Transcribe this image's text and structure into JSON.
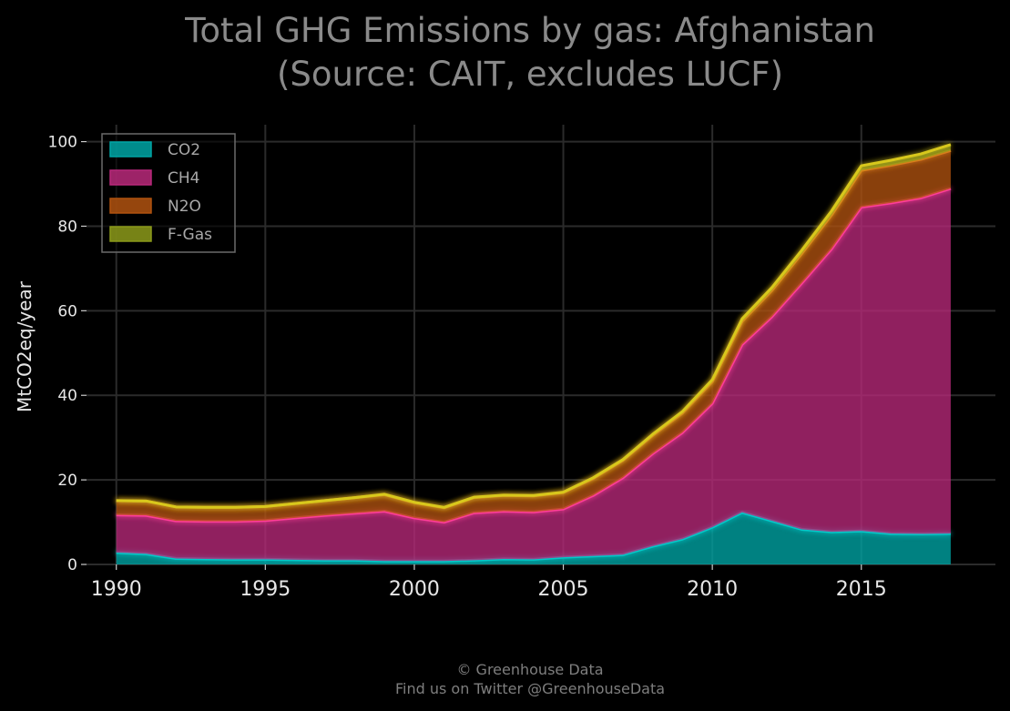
{
  "chart_data": {
    "type": "area",
    "stacked": true,
    "title": [
      "Total GHG Emissions by gas: Afghanistan",
      "(Source: CAIT, excludes LUCF)"
    ],
    "ylabel": "MtCO2eq/year",
    "xlabel": "",
    "xlim": [
      1989.0,
      2019.5
    ],
    "ylim": [
      0,
      104
    ],
    "x_ticks": [
      1990,
      1995,
      2000,
      2005,
      2010,
      2015
    ],
    "y_ticks": [
      0,
      20,
      40,
      60,
      80,
      100
    ],
    "grid": true,
    "legend_position": "top-left",
    "x": [
      1990,
      1991,
      1992,
      1993,
      1994,
      1995,
      1996,
      1997,
      1998,
      1999,
      2000,
      2001,
      2002,
      2003,
      2004,
      2005,
      2006,
      2007,
      2008,
      2009,
      2010,
      2011,
      2012,
      2013,
      2014,
      2015,
      2016,
      2017,
      2018
    ],
    "series": [
      {
        "name": "CO2",
        "color": "#00a5a5",
        "values": [
          2.8,
          2.5,
          1.4,
          1.3,
          1.2,
          1.2,
          1.1,
          1.0,
          1.0,
          0.8,
          0.8,
          0.8,
          1.0,
          1.3,
          1.2,
          1.7,
          2.0,
          2.3,
          4.3,
          6.0,
          8.8,
          12.3,
          10.3,
          8.3,
          7.7,
          7.9,
          7.3,
          7.2,
          7.3
        ]
      },
      {
        "name": "CH4",
        "color": "#b8297a",
        "values": [
          8.9,
          9.1,
          8.9,
          8.9,
          9.0,
          9.2,
          9.9,
          10.6,
          11.1,
          11.8,
          10.2,
          9.2,
          11.2,
          11.3,
          11.2,
          11.4,
          14.3,
          18.2,
          21.9,
          25.2,
          29.3,
          39.7,
          48.3,
          58.2,
          66.9,
          76.6,
          78.2,
          79.5,
          81.6
        ]
      },
      {
        "name": "N2O",
        "color": "#b0520f",
        "values": [
          3.4,
          3.4,
          3.3,
          3.3,
          3.3,
          3.3,
          3.4,
          3.5,
          3.7,
          3.9,
          3.6,
          3.4,
          3.6,
          3.7,
          3.8,
          3.9,
          4.0,
          4.1,
          4.3,
          4.6,
          5.1,
          5.5,
          6.2,
          7.0,
          8.0,
          8.7,
          8.9,
          9.1,
          9.0
        ]
      },
      {
        "name": "F-Gas",
        "color": "#8c9a1a",
        "values": [
          0.0,
          0.0,
          0.0,
          0.0,
          0.0,
          0.0,
          0.0,
          0.0,
          0.0,
          0.1,
          0.1,
          0.1,
          0.1,
          0.1,
          0.1,
          0.1,
          0.2,
          0.2,
          0.3,
          0.4,
          0.5,
          0.6,
          0.7,
          0.8,
          1.0,
          1.1,
          1.2,
          1.3,
          1.4
        ]
      }
    ],
    "footer": [
      "© Greenhouse Data",
      "Find us on Twitter @GreenhouseData"
    ]
  }
}
